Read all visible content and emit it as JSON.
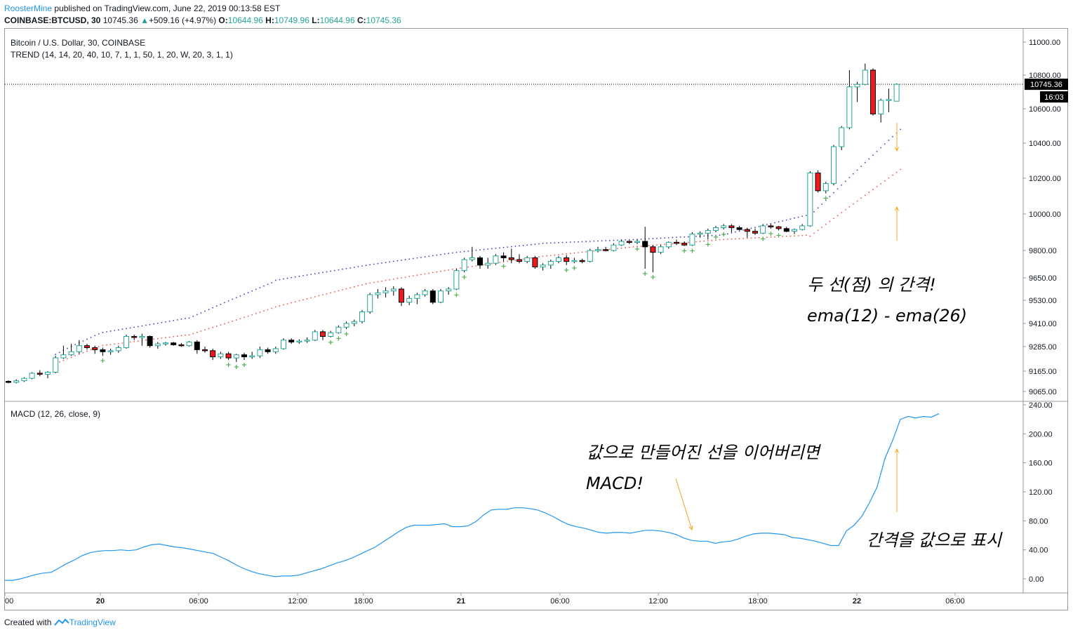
{
  "header": {
    "author": "RoosterMine",
    "published": " published on TradingView.com, June 22, 2019 00:13:58 EST",
    "symbol": "COINBASE:BTCUSD, 30",
    "last": "10745.36",
    "change": "+509.16 (+4.97%)",
    "o_label": "O:",
    "o_value": "10644.96",
    "h_label": "H:",
    "h_value": "10749.96",
    "l_label": "L:",
    "l_value": "10644.96",
    "c_label": "C:",
    "c_value": "10745.36"
  },
  "legend": {
    "title": "Bitcoin / U.S. Dollar, 30, COINBASE",
    "trend": "TREND (14, 14, 20, 40, 10, 7, 1, 1, 50, 1, 20, W, 20, 3, 1, 1)",
    "macd": "MACD (12, 26, close, 9)"
  },
  "price_label": "10745.36",
  "countdown": "16:03",
  "annotations": {
    "gap_title": "두 선(점) 의 간격!",
    "gap_formula": "ema(12) - ema(26)",
    "connect": "값으로 만들어진 선을 이어버리면",
    "macd": "MACD!",
    "value": "간격을 값으로 표시"
  },
  "footer": {
    "created_with": "Created with",
    "brand": "TradingView"
  },
  "colors": {
    "up_border": "#26a69a",
    "down_fill": "#ef1a1a",
    "dark_fill": "#000000",
    "macd_line": "#2196f3",
    "ema_fast": "#3b3fbf",
    "ema_slow": "#ef5350",
    "signal_marker": "#4caf50",
    "arrow": "#f5a623"
  },
  "chart_data": [
    {
      "type": "candlestick",
      "title": "Bitcoin / U.S. Dollar, 30, COINBASE",
      "x_ticks": [
        "00",
        "20",
        "06:00",
        "12:00",
        "18:00",
        "21",
        "06:00",
        "12:00",
        "18:00",
        "22",
        "06:00"
      ],
      "y_ticks": [
        11000,
        10800,
        10600,
        10400,
        10200,
        10000,
        9800,
        9650,
        9530,
        9410,
        9285,
        9165,
        9065
      ],
      "y_tick_labels": [
        "11000.00",
        "10800.00",
        "10600.00",
        "10400.00",
        "10200.00",
        "10000.00",
        "9800.00",
        "9650.00",
        "9530.00",
        "9410.00",
        "9285.00",
        "9165.00",
        "9065.00"
      ],
      "last_price": 10745.36,
      "candles": [
        [
          9115,
          9120,
          9105,
          9110
        ],
        [
          9110,
          9125,
          9105,
          9118
        ],
        [
          9118,
          9135,
          9112,
          9130
        ],
        [
          9130,
          9160,
          9125,
          9155
        ],
        [
          9155,
          9170,
          9140,
          9150
        ],
        [
          9150,
          9165,
          9130,
          9160
        ],
        [
          9160,
          9240,
          9155,
          9230
        ],
        [
          9230,
          9290,
          9225,
          9245
        ],
        [
          9245,
          9300,
          9240,
          9260
        ],
        [
          9260,
          9320,
          9250,
          9290
        ],
        [
          9290,
          9300,
          9270,
          9280
        ],
        [
          9280,
          9290,
          9250,
          9270
        ],
        [
          9270,
          9280,
          9240,
          9260
        ],
        [
          9260,
          9275,
          9245,
          9265
        ],
        [
          9265,
          9290,
          9255,
          9280
        ],
        [
          9280,
          9350,
          9275,
          9340
        ],
        [
          9340,
          9350,
          9320,
          9335
        ],
        [
          9335,
          9355,
          9290,
          9340
        ],
        [
          9340,
          9345,
          9280,
          9290
        ],
        [
          9290,
          9310,
          9275,
          9300
        ],
        [
          9300,
          9310,
          9290,
          9305
        ],
        [
          9305,
          9310,
          9290,
          9295
        ],
        [
          9295,
          9305,
          9285,
          9290
        ],
        [
          9290,
          9315,
          9285,
          9310
        ],
        [
          9310,
          9320,
          9250,
          9270
        ],
        [
          9270,
          9285,
          9255,
          9265
        ],
        [
          9265,
          9275,
          9220,
          9235
        ],
        [
          9235,
          9260,
          9225,
          9250
        ],
        [
          9250,
          9260,
          9220,
          9230
        ],
        [
          9230,
          9250,
          9210,
          9245
        ],
        [
          9245,
          9255,
          9220,
          9235
        ],
        [
          9235,
          9260,
          9225,
          9240
        ],
        [
          9240,
          9285,
          9230,
          9270
        ],
        [
          9270,
          9280,
          9250,
          9260
        ],
        [
          9260,
          9285,
          9250,
          9275
        ],
        [
          9275,
          9330,
          9270,
          9320
        ],
        [
          9320,
          9330,
          9300,
          9310
        ],
        [
          9310,
          9325,
          9300,
          9315
        ],
        [
          9315,
          9335,
          9305,
          9320
        ],
        [
          9320,
          9375,
          9315,
          9365
        ],
        [
          9365,
          9375,
          9320,
          9340
        ],
        [
          9340,
          9370,
          9335,
          9360
        ],
        [
          9360,
          9400,
          9355,
          9390
        ],
        [
          9390,
          9420,
          9380,
          9410
        ],
        [
          9410,
          9430,
          9395,
          9420
        ],
        [
          9420,
          9480,
          9410,
          9470
        ],
        [
          9470,
          9570,
          9460,
          9560
        ],
        [
          9560,
          9590,
          9540,
          9570
        ],
        [
          9570,
          9600,
          9545,
          9580
        ],
        [
          9580,
          9605,
          9555,
          9590
        ],
        [
          9590,
          9600,
          9500,
          9520
        ],
        [
          9520,
          9555,
          9505,
          9540
        ],
        [
          9540,
          9570,
          9510,
          9560
        ],
        [
          9560,
          9590,
          9550,
          9580
        ],
        [
          9580,
          9590,
          9510,
          9520
        ],
        [
          9520,
          9590,
          9515,
          9580
        ],
        [
          9580,
          9600,
          9560,
          9590
        ],
        [
          9590,
          9700,
          9585,
          9690
        ],
        [
          9690,
          9760,
          9680,
          9750
        ],
        [
          9750,
          9820,
          9740,
          9760
        ],
        [
          9760,
          9770,
          9700,
          9720
        ],
        [
          9720,
          9760,
          9700,
          9730
        ],
        [
          9730,
          9780,
          9720,
          9770
        ],
        [
          9770,
          9790,
          9740,
          9760
        ],
        [
          9760,
          9810,
          9730,
          9750
        ],
        [
          9750,
          9780,
          9730,
          9740
        ],
        [
          9740,
          9770,
          9730,
          9760
        ],
        [
          9760,
          9770,
          9700,
          9710
        ],
        [
          9710,
          9730,
          9690,
          9720
        ],
        [
          9720,
          9750,
          9700,
          9740
        ],
        [
          9740,
          9770,
          9730,
          9760
        ],
        [
          9760,
          9775,
          9720,
          9740
        ],
        [
          9740,
          9760,
          9730,
          9745
        ],
        [
          9745,
          9755,
          9730,
          9740
        ],
        [
          9740,
          9810,
          9735,
          9800
        ],
        [
          9800,
          9820,
          9790,
          9805
        ],
        [
          9805,
          9820,
          9795,
          9800
        ],
        [
          9800,
          9840,
          9795,
          9830
        ],
        [
          9830,
          9860,
          9825,
          9850
        ],
        [
          9850,
          9855,
          9835,
          9845
        ],
        [
          9845,
          9860,
          9835,
          9850
        ],
        [
          9850,
          9930,
          9700,
          9820
        ],
        [
          9820,
          9830,
          9680,
          9790
        ],
        [
          9790,
          9830,
          9780,
          9820
        ],
        [
          9820,
          9850,
          9810,
          9845
        ],
        [
          9845,
          9860,
          9830,
          9840
        ],
        [
          9840,
          9850,
          9825,
          9830
        ],
        [
          9830,
          9900,
          9825,
          9890
        ],
        [
          9890,
          9905,
          9870,
          9895
        ],
        [
          9895,
          9920,
          9860,
          9910
        ],
        [
          9910,
          9935,
          9900,
          9925
        ],
        [
          9925,
          9945,
          9915,
          9935
        ],
        [
          9935,
          9945,
          9900,
          9925
        ],
        [
          9925,
          9935,
          9910,
          9915
        ],
        [
          9915,
          9925,
          9870,
          9905
        ],
        [
          9905,
          9920,
          9885,
          9895
        ],
        [
          9895,
          9945,
          9890,
          9935
        ],
        [
          9935,
          9945,
          9920,
          9930
        ],
        [
          9930,
          9935,
          9910,
          9920
        ],
        [
          9920,
          9930,
          9900,
          9905
        ],
        [
          9905,
          9920,
          9890,
          9915
        ],
        [
          9915,
          9945,
          9910,
          9935
        ],
        [
          9935,
          10240,
          9930,
          10230
        ],
        [
          10230,
          10245,
          10120,
          10130
        ],
        [
          10130,
          10180,
          10115,
          10170
        ],
        [
          10170,
          10390,
          10160,
          10380
        ],
        [
          10380,
          10500,
          10360,
          10490
        ],
        [
          10490,
          10830,
          10480,
          10730
        ],
        [
          10730,
          10760,
          10640,
          10745
        ],
        [
          10745,
          10870,
          10740,
          10830
        ],
        [
          10830,
          10840,
          10560,
          10570
        ],
        [
          10570,
          10660,
          10520,
          10650
        ],
        [
          10650,
          10720,
          10580,
          10655
        ],
        [
          10644.96,
          10749.96,
          10644.96,
          10745.36
        ]
      ],
      "ema_fast_levels": [
        9140,
        9360,
        9440,
        9640,
        9720,
        9790,
        9840,
        9860,
        9885,
        10000,
        10480
      ],
      "ema_slow_levels": [
        9120,
        9290,
        9350,
        9500,
        9620,
        9700,
        9770,
        9820,
        9860,
        9885,
        10250
      ],
      "buy_signal_bars": [
        12,
        28,
        29,
        30,
        41,
        42,
        43,
        57,
        58,
        63,
        71,
        72,
        80,
        81,
        82,
        86,
        87,
        89,
        90,
        91,
        96,
        97,
        98,
        104
      ]
    },
    {
      "type": "line",
      "title": "MACD (12, 26, close, 9)",
      "y_ticks": [
        240,
        200,
        160,
        120,
        80,
        40,
        0
      ],
      "y_tick_labels": [
        "240.00",
        "200.00",
        "160.00",
        "120.00",
        "80.00",
        "40.00",
        "0.00"
      ],
      "series": [
        {
          "values": [
            -2,
            -2,
            0,
            3,
            6,
            8,
            9,
            15,
            21,
            26,
            32,
            36,
            38,
            39,
            39,
            40,
            39,
            40,
            44,
            47,
            48,
            46,
            44,
            43,
            41,
            39,
            37,
            35,
            30,
            25,
            19,
            14,
            10,
            7,
            5,
            3,
            4,
            4,
            5,
            8,
            11,
            14,
            18,
            22,
            25,
            29,
            34,
            39,
            44,
            51,
            58,
            65,
            71,
            74,
            74,
            74,
            75,
            76,
            72,
            72,
            73,
            79,
            88,
            95,
            96,
            96,
            98,
            98,
            97,
            95,
            91,
            86,
            80,
            75,
            72,
            70,
            67,
            64,
            63,
            64,
            64,
            63,
            65,
            67,
            67,
            66,
            64,
            61,
            56,
            53,
            52,
            52,
            49,
            51,
            52,
            55,
            59,
            62,
            63,
            63,
            62,
            61,
            57,
            56,
            54,
            52,
            49,
            46,
            46,
            66,
            74,
            86,
            105,
            127,
            166,
            191,
            220,
            224,
            222,
            224,
            223,
            228
          ]
        }
      ]
    }
  ]
}
